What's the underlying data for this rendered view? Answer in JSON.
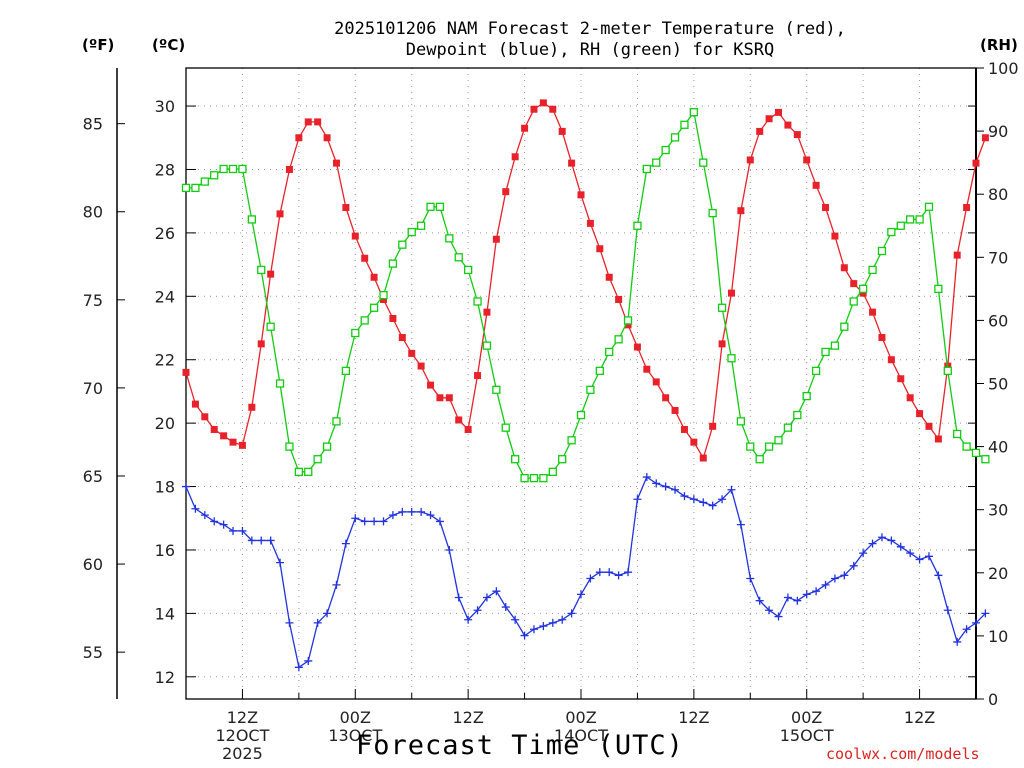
{
  "chart_data": {
    "type": "line",
    "title_line1": "2025101206 NAM Forecast 2-meter Temperature (red),",
    "title_line2": "Dewpoint (blue), RH (green) for KSRQ",
    "units": {
      "fahrenheit": "(ºF)",
      "celsius": "(ºC)",
      "rh": "(RH)"
    },
    "xlabel": "Forecast Time (UTC)",
    "credit": "coolwx.com/models",
    "x_unit": "hours since 2025-10-12 06Z",
    "xlim": [
      0,
      84
    ],
    "celsius_lim": [
      11.3,
      31.2
    ],
    "fahrenheit_ticks": [
      55,
      60,
      65,
      70,
      75,
      80,
      85
    ],
    "celsius_ticks": [
      12,
      14,
      16,
      18,
      20,
      22,
      24,
      26,
      28,
      30
    ],
    "rh_lim": [
      0,
      100
    ],
    "rh_ticks": [
      0,
      10,
      20,
      30,
      40,
      50,
      60,
      70,
      80,
      90,
      100
    ],
    "x_ticks": [
      {
        "hour": 6,
        "lines": [
          "12Z",
          "12OCT",
          "2025"
        ]
      },
      {
        "hour": 18,
        "lines": [
          "00Z",
          "13OCT"
        ]
      },
      {
        "hour": 30,
        "lines": [
          "12Z"
        ]
      },
      {
        "hour": 42,
        "lines": [
          "00Z",
          "14OCT"
        ]
      },
      {
        "hour": 54,
        "lines": [
          "12Z"
        ]
      },
      {
        "hour": 66,
        "lines": [
          "00Z",
          "15OCT"
        ]
      },
      {
        "hour": 78,
        "lines": [
          "12Z"
        ]
      }
    ],
    "x_minor_hours": [
      12,
      24,
      36,
      48,
      60,
      72
    ],
    "colors": {
      "temperature": "#e8222a",
      "dewpoint": "#2233dd",
      "rh": "#11cc11",
      "grid": "#999999",
      "credit": "#dd2222"
    },
    "series": [
      {
        "name": "Temperature",
        "unit": "°C",
        "marker": "filled-square",
        "values": [
          21.6,
          20.6,
          20.2,
          19.8,
          19.6,
          19.4,
          19.3,
          20.5,
          22.5,
          24.7,
          26.6,
          28.0,
          29.0,
          29.5,
          29.5,
          29.0,
          28.2,
          26.8,
          25.9,
          25.2,
          24.6,
          23.9,
          23.3,
          22.7,
          22.2,
          21.8,
          21.2,
          20.8,
          20.8,
          20.1,
          19.8,
          21.5,
          23.5,
          25.8,
          27.3,
          28.4,
          29.3,
          29.9,
          30.1,
          29.9,
          29.2,
          28.2,
          27.2,
          26.3,
          25.5,
          24.6,
          23.9,
          23.1,
          22.4,
          21.7,
          21.3,
          20.8,
          20.4,
          19.8,
          19.4,
          18.9,
          19.9,
          22.5,
          24.1,
          26.7,
          28.3,
          29.2,
          29.6,
          29.8,
          29.4,
          29.1,
          28.3,
          27.5,
          26.8,
          25.9,
          24.9,
          24.4,
          24.1,
          23.5,
          22.7,
          22.0,
          21.4,
          20.8,
          20.3,
          19.9,
          19.5,
          21.8,
          25.3,
          26.8,
          28.2,
          29.0
        ]
      },
      {
        "name": "Dewpoint",
        "unit": "°C",
        "marker": "plus",
        "values": [
          18.0,
          17.3,
          17.1,
          16.9,
          16.8,
          16.6,
          16.6,
          16.3,
          16.3,
          16.3,
          15.6,
          13.7,
          12.3,
          12.5,
          13.7,
          14.0,
          14.9,
          16.2,
          17.0,
          16.9,
          16.9,
          16.9,
          17.1,
          17.2,
          17.2,
          17.2,
          17.1,
          16.9,
          16.0,
          14.5,
          13.8,
          14.1,
          14.5,
          14.7,
          14.2,
          13.8,
          13.3,
          13.5,
          13.6,
          13.7,
          13.8,
          14.0,
          14.6,
          15.1,
          15.3,
          15.3,
          15.2,
          15.3,
          17.6,
          18.3,
          18.1,
          18.0,
          17.9,
          17.7,
          17.6,
          17.5,
          17.4,
          17.6,
          17.9,
          16.8,
          15.1,
          14.4,
          14.1,
          13.9,
          14.5,
          14.4,
          14.6,
          14.7,
          14.9,
          15.1,
          15.2,
          15.5,
          15.9,
          16.2,
          16.4,
          16.3,
          16.1,
          15.9,
          15.7,
          15.8,
          15.2,
          14.1,
          13.1,
          13.5,
          13.7,
          14.0
        ]
      },
      {
        "name": "RH",
        "unit": "%",
        "marker": "open-square",
        "values": [
          81,
          81,
          82,
          83,
          84,
          84,
          84,
          76,
          68,
          59,
          50,
          40,
          36,
          36,
          38,
          40,
          44,
          52,
          58,
          60,
          62,
          64,
          69,
          72,
          74,
          75,
          78,
          78,
          73,
          70,
          68,
          63,
          56,
          49,
          43,
          38,
          35,
          35,
          35,
          36,
          38,
          41,
          45,
          49,
          52,
          55,
          57,
          60,
          75,
          84,
          85,
          87,
          89,
          91,
          93,
          85,
          77,
          62,
          54,
          44,
          40,
          38,
          40,
          41,
          43,
          45,
          48,
          52,
          55,
          56,
          59,
          63,
          65,
          68,
          71,
          74,
          75,
          76,
          76,
          78,
          65,
          52,
          42,
          40,
          39,
          38
        ]
      }
    ]
  }
}
